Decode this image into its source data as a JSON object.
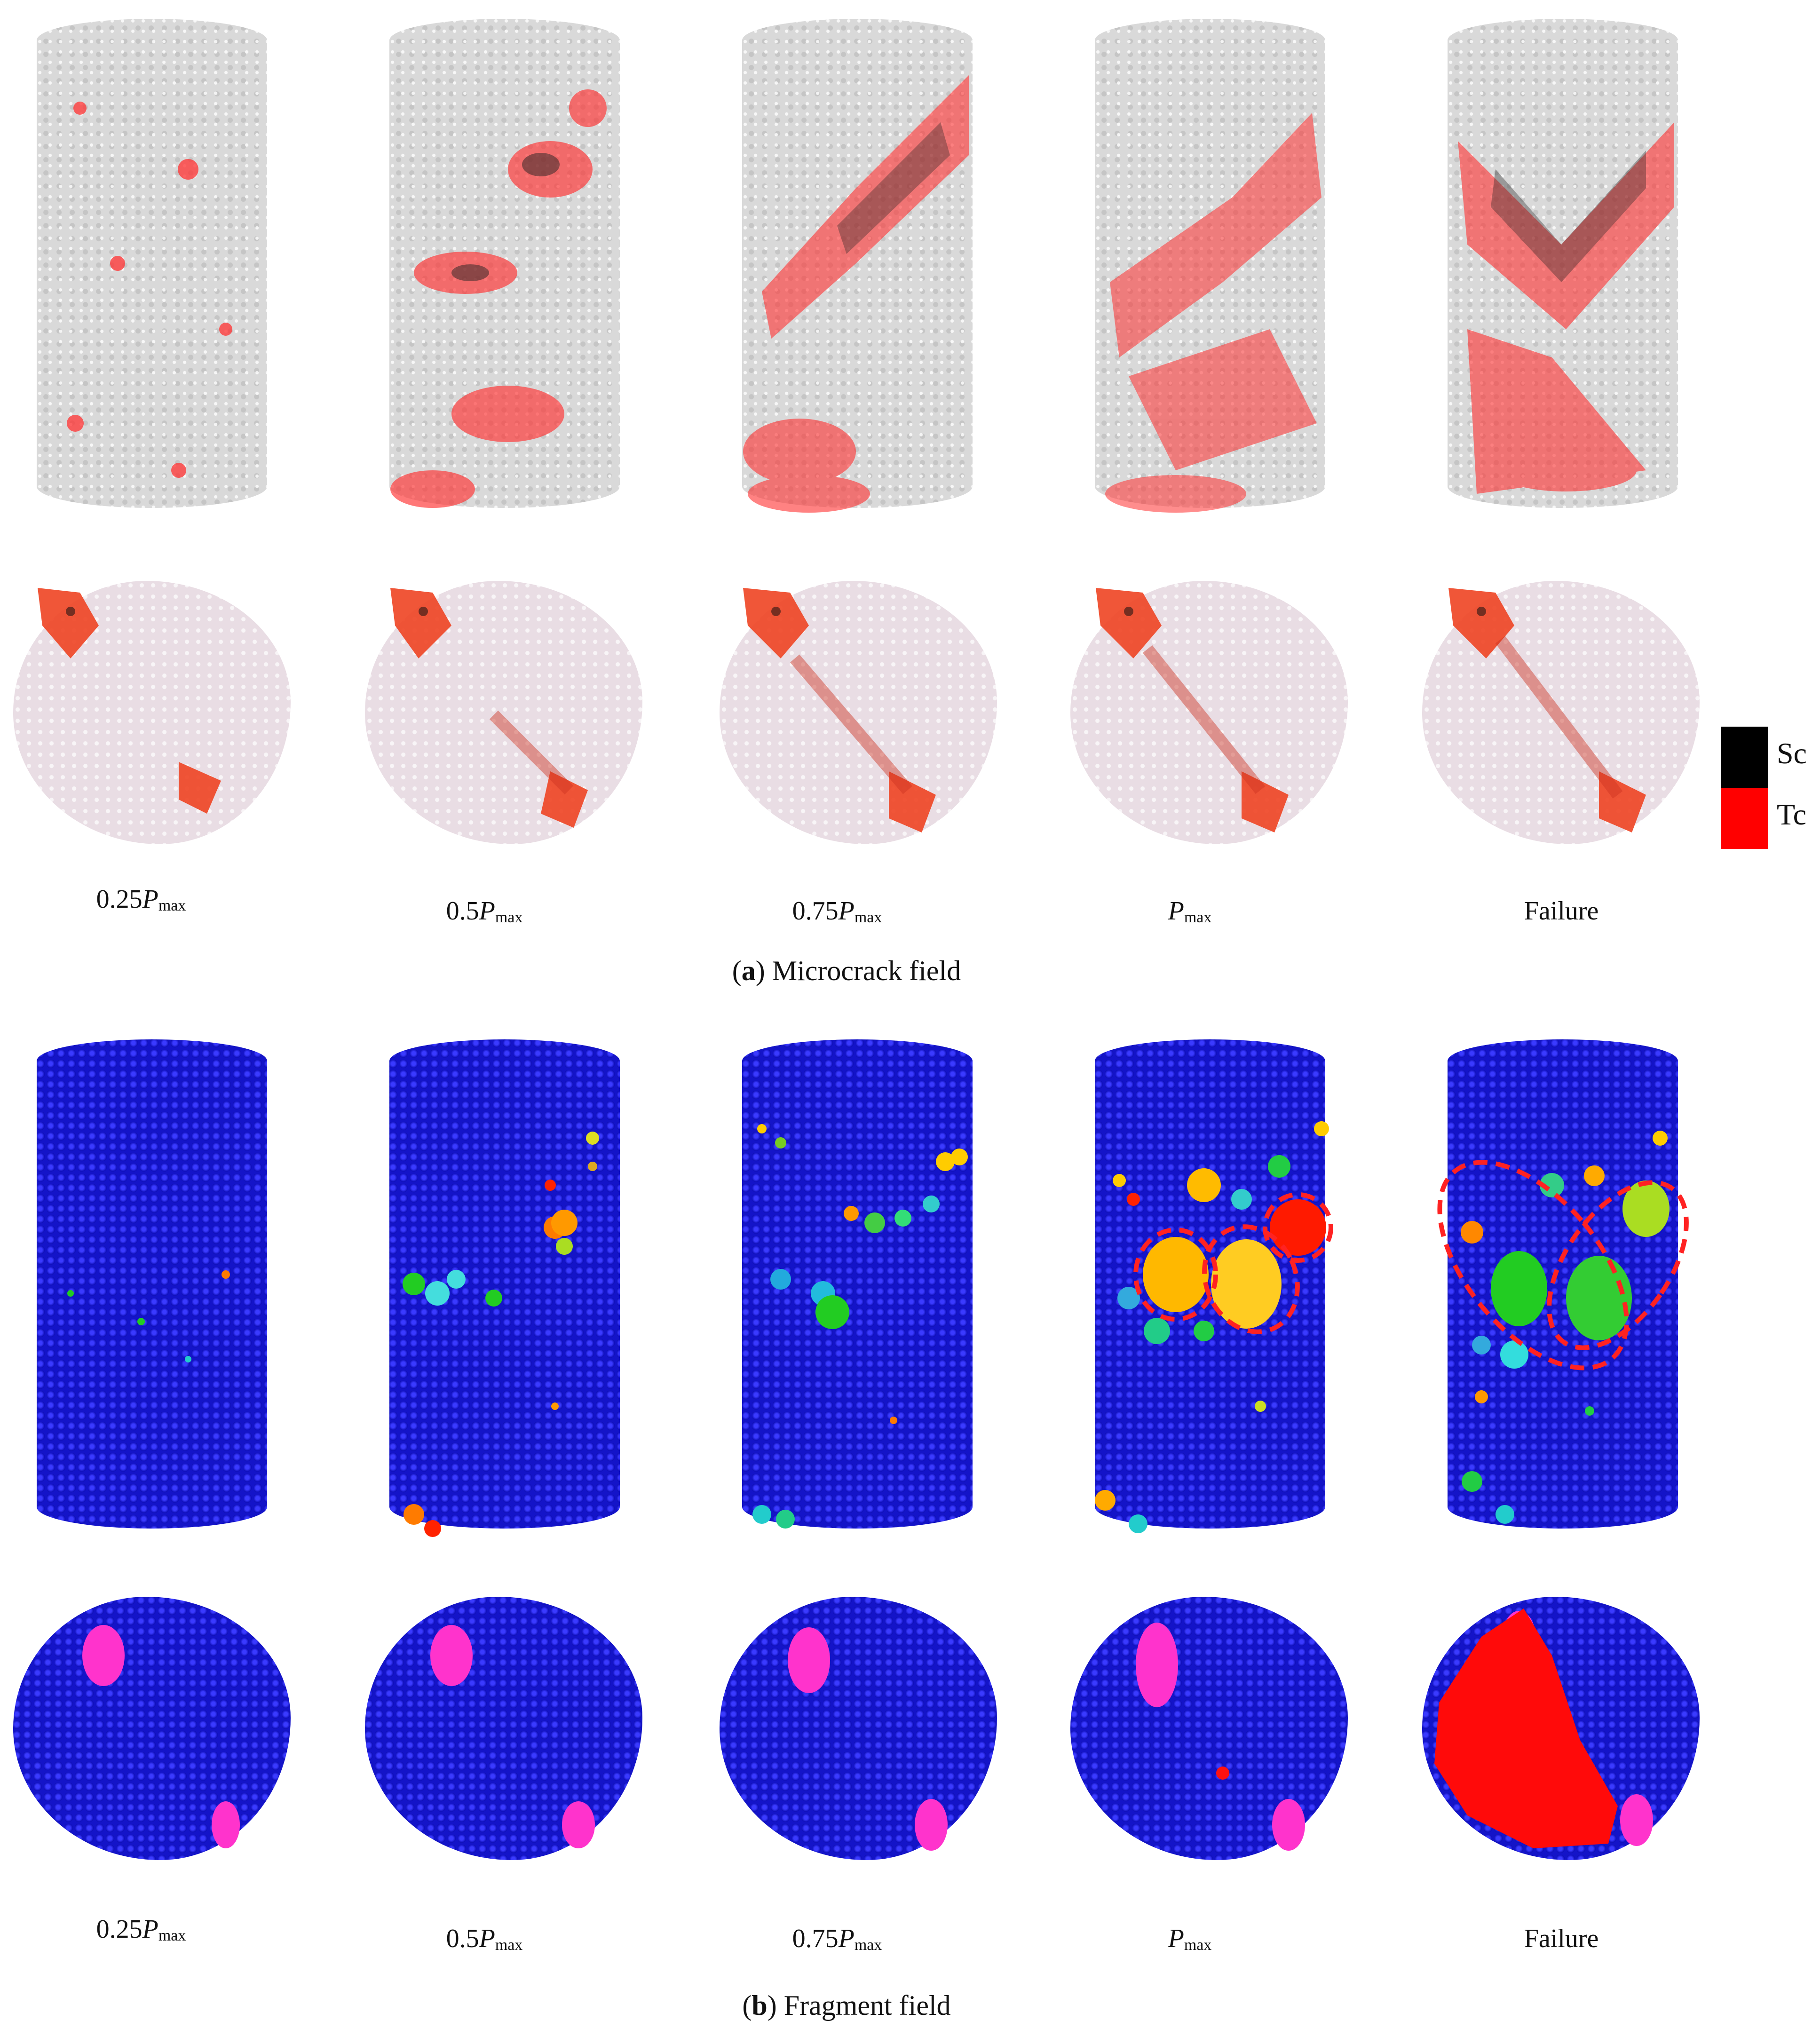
{
  "stage_labels": {
    "s1": {
      "prefix": "0.25",
      "p": "P",
      "sub": "max"
    },
    "s2": {
      "prefix": "0.5",
      "p": "P",
      "sub": "max"
    },
    "s3": {
      "prefix": "0.75",
      "p": "P",
      "sub": "max"
    },
    "s4": {
      "prefix": "",
      "p": "P",
      "sub": "max"
    },
    "s5": {
      "text": "Failure"
    }
  },
  "captions": {
    "a_letter": "a",
    "a_text": " Microcrack field",
    "b_letter": "b",
    "b_text": " Fragment field"
  },
  "legend": {
    "sc": {
      "label": "Sc",
      "color": "#000000"
    },
    "tc": {
      "label": "Tc",
      "color": "#ff0000"
    }
  },
  "colors": {
    "background_particles_a": "#d9d9d9",
    "background_particles_b": "#1414c8",
    "crack_red": "#ff2a2a",
    "crack_black": "#111111"
  }
}
